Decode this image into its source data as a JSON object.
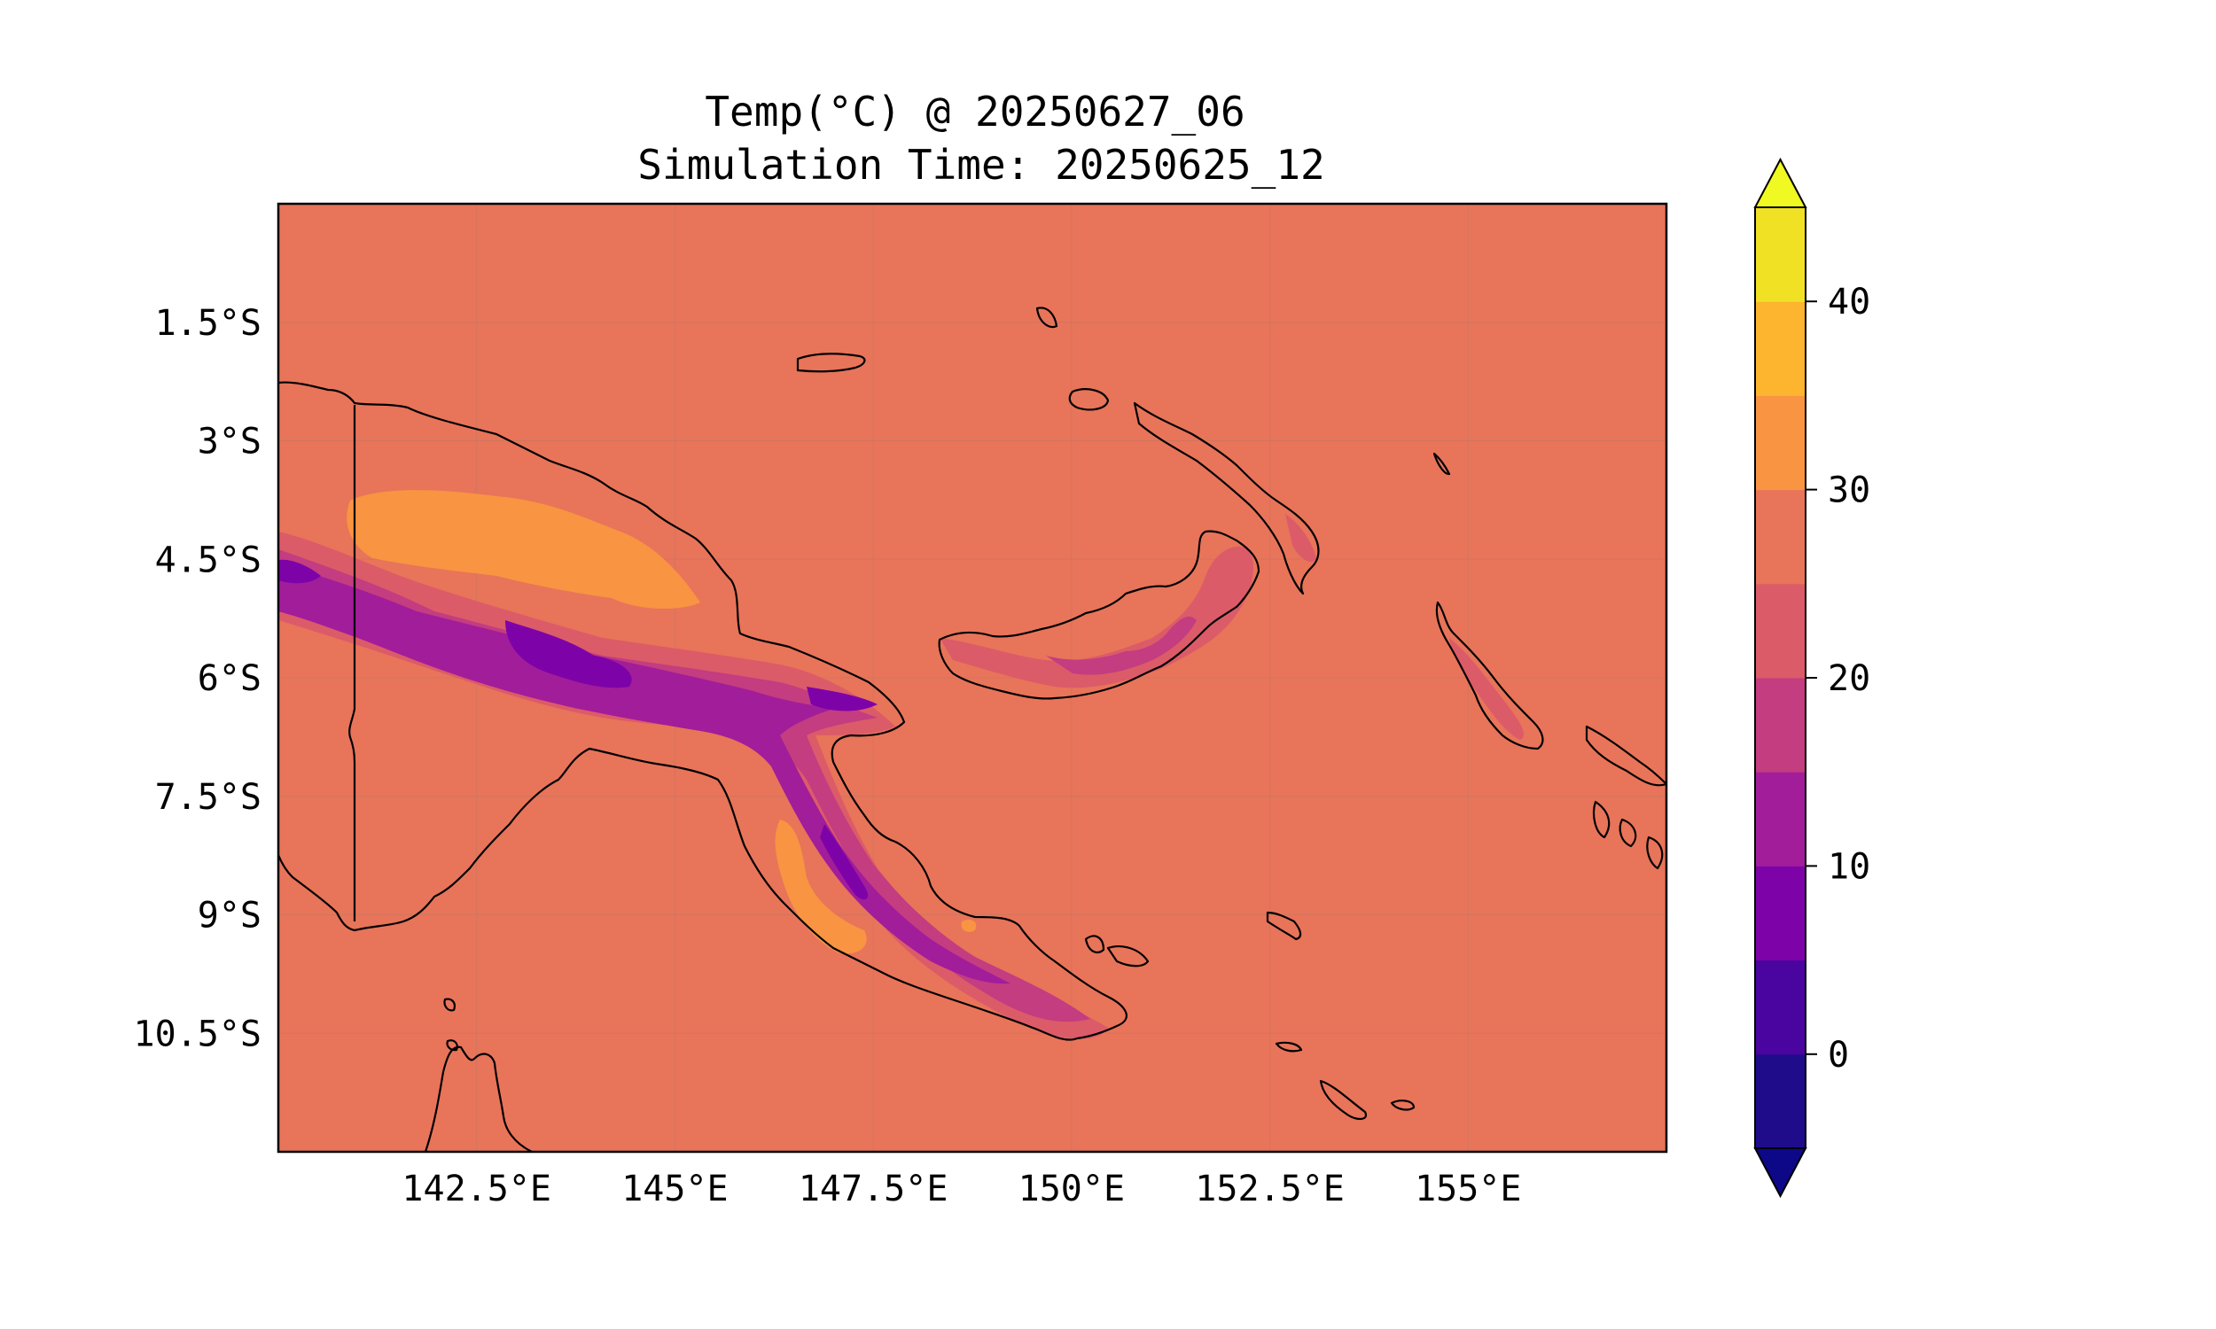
{
  "title": {
    "line1": "Temp(°C) @ 20250627_06",
    "line2": "Simulation Time: 20250625_12"
  },
  "map": {
    "background_color": "#e8745a",
    "lon_ticks": [
      "142.5°E",
      "145°E",
      "147.5°E",
      "150°E",
      "152.5°E",
      "155°E"
    ],
    "lat_ticks": [
      "1.5°S",
      "3°S",
      "4.5°S",
      "6°S",
      "7.5°S",
      "9°S",
      "10.5°S"
    ],
    "lon_tick_values": [
      142.5,
      145,
      147.5,
      150,
      152.5,
      155
    ],
    "lat_tick_values": [
      -1.5,
      -3,
      -4.5,
      -6,
      -7.5,
      -9,
      -10.5
    ],
    "extent": {
      "lon_min": 140.0,
      "lon_max": 157.5,
      "lat_min": -12.0,
      "lat_max": 0.0
    }
  },
  "colorbar": {
    "levels": [
      -5,
      0,
      5,
      10,
      15,
      20,
      25,
      30,
      35,
      40,
      45
    ],
    "colors": [
      "#1f0c8a",
      "#4a04a0",
      "#7d03a8",
      "#a21d9a",
      "#c33d80",
      "#dc5b68",
      "#e8745a",
      "#f89442",
      "#fdb42f",
      "#f1e125"
    ],
    "under_color": "#0d0887",
    "over_color": "#f0f921",
    "tick_labels": [
      "0",
      "10",
      "20",
      "30",
      "40"
    ],
    "tick_values": [
      0,
      10,
      20,
      30,
      40
    ]
  }
}
